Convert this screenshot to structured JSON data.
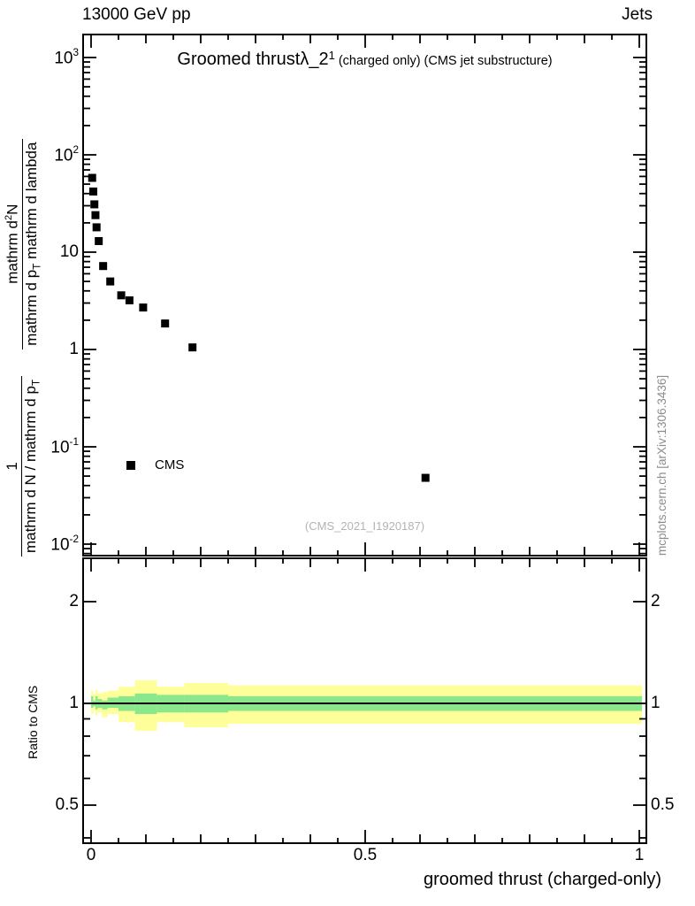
{
  "header": {
    "left": "13000 GeV pp",
    "right": "Jets"
  },
  "main_panel": {
    "title_big": "Groomed thrust",
    "title_lambda": "λ_2",
    "title_sup": "1",
    "title_small": "(charged only) (CMS jet substructure)",
    "legend_label": "CMS",
    "watermark": "(CMS_2021_I1920187)",
    "ylabel": {
      "frac1_num": "1",
      "frac1_den": "mathrm d N / mathrm d p",
      "frac1_den_sub": "T",
      "frac2_num": "mathrm d",
      "frac2_num_sup": "2",
      "frac2_num_after": "N",
      "frac2_den": "mathrm d p",
      "frac2_den_sub": "T",
      "frac2_den_after": " mathrm d lambda"
    }
  },
  "ratio_panel": {
    "ylabel": "Ratio to CMS"
  },
  "xlabel": "groomed thrust (charged-only)",
  "right_credit": "mcplots.cern.ch [arXiv:1306.3436]",
  "chart_data": {
    "type": "scatter",
    "title": "Groomed thrust λ_2^1 (charged only) (CMS jet substructure)",
    "xlabel": "groomed thrust (charged-only)",
    "ylabel": "1/(dN/dp_T) d^2N/(dp_T dlambda)",
    "x_axis": {
      "lim": [
        -0.013,
        1.012
      ],
      "ticks": [
        {
          "v": 0,
          "label": "0"
        },
        {
          "v": 0.5,
          "label": "0.5"
        },
        {
          "v": 1,
          "label": "1"
        }
      ],
      "minor_step": 0.05
    },
    "main_y_axis": {
      "scale": "log",
      "lim": [
        0.0085,
        1700
      ],
      "ticks": [
        {
          "v": 1000,
          "base": "10",
          "exp": "3"
        },
        {
          "v": 100,
          "base": "10",
          "exp": "2"
        },
        {
          "v": 10,
          "base": "10",
          "exp": ""
        },
        {
          "v": 1,
          "base": "1",
          "exp": ""
        },
        {
          "v": 0.1,
          "base": "10",
          "exp": "-1"
        },
        {
          "v": 0.01,
          "base": "10",
          "exp": "-2"
        }
      ]
    },
    "ratio_y_axis": {
      "scale": "log",
      "lim": [
        0.39,
        2.7
      ],
      "ticks": [
        {
          "v": 2,
          "label": "2"
        },
        {
          "v": 1,
          "label": "1"
        },
        {
          "v": 0.5,
          "label": "0.5"
        }
      ],
      "minor": [
        0.4,
        0.6,
        0.7,
        0.8,
        0.9
      ]
    },
    "series": [
      {
        "name": "CMS",
        "marker": "square",
        "color": "#000000",
        "points": [
          [
            0.002,
            58
          ],
          [
            0.004,
            42
          ],
          [
            0.006,
            31
          ],
          [
            0.008,
            24
          ],
          [
            0.01,
            18
          ],
          [
            0.014,
            13
          ],
          [
            0.022,
            7.2
          ],
          [
            0.035,
            5.0
          ],
          [
            0.055,
            3.6
          ],
          [
            0.07,
            3.2
          ],
          [
            0.095,
            2.7
          ],
          [
            0.135,
            1.85
          ],
          [
            0.185,
            1.05
          ],
          [
            0.61,
            0.048
          ]
        ]
      }
    ],
    "ratio": {
      "line_y": 1,
      "line_color": "#000000",
      "bands": {
        "yellow": {
          "color": "#ffff99",
          "segments": [
            [
              0.0,
              0.004,
              0.93,
              1.09
            ],
            [
              0.004,
              0.008,
              0.95,
              1.06
            ],
            [
              0.008,
              0.012,
              0.92,
              1.1
            ],
            [
              0.012,
              0.02,
              0.94,
              1.07
            ],
            [
              0.02,
              0.03,
              0.91,
              1.08
            ],
            [
              0.03,
              0.05,
              0.93,
              1.09
            ],
            [
              0.05,
              0.08,
              0.88,
              1.12
            ],
            [
              0.08,
              0.12,
              0.83,
              1.17
            ],
            [
              0.12,
              0.17,
              0.88,
              1.12
            ],
            [
              0.17,
              0.25,
              0.85,
              1.15
            ],
            [
              0.25,
              1.005,
              0.87,
              1.13
            ]
          ]
        },
        "green": {
          "color": "#8be78b",
          "segments": [
            [
              0.0,
              0.004,
              0.97,
              1.05
            ],
            [
              0.004,
              0.008,
              0.98,
              1.02
            ],
            [
              0.008,
              0.012,
              0.96,
              1.05
            ],
            [
              0.012,
              0.02,
              0.97,
              1.03
            ],
            [
              0.02,
              0.03,
              0.96,
              1.02
            ],
            [
              0.03,
              0.05,
              0.97,
              1.04
            ],
            [
              0.05,
              0.08,
              0.95,
              1.05
            ],
            [
              0.08,
              0.12,
              0.93,
              1.07
            ],
            [
              0.12,
              0.17,
              0.94,
              1.06
            ],
            [
              0.17,
              0.25,
              0.94,
              1.06
            ],
            [
              0.25,
              1.005,
              0.95,
              1.05
            ]
          ]
        }
      }
    }
  }
}
